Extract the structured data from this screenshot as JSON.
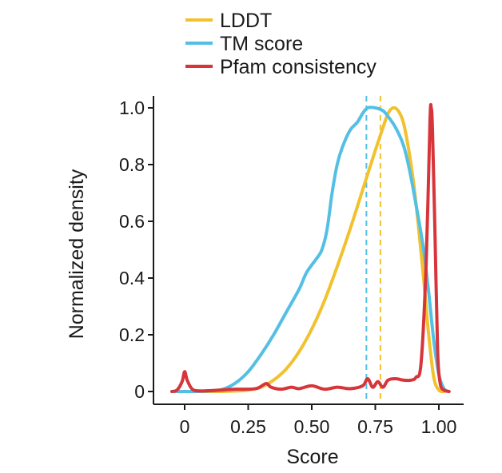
{
  "chart_data": {
    "type": "line",
    "title": "",
    "xlabel": "Score",
    "ylabel": "Normalized density",
    "xlim": [
      -0.05,
      1.05
    ],
    "ylim": [
      0,
      1.0
    ],
    "x_ticks": [
      {
        "value": 0,
        "label": "0"
      },
      {
        "value": 0.25,
        "label": "0.25"
      },
      {
        "value": 0.5,
        "label": "0.50"
      },
      {
        "value": 0.75,
        "label": "0.75"
      },
      {
        "value": 1.0,
        "label": "1.00"
      }
    ],
    "y_ticks": [
      {
        "value": 0,
        "label": "0"
      },
      {
        "value": 0.2,
        "label": "0.2"
      },
      {
        "value": 0.4,
        "label": "0.4"
      },
      {
        "value": 0.6,
        "label": "0.6"
      },
      {
        "value": 0.8,
        "label": "0.8"
      },
      {
        "value": 1.0,
        "label": "1.0"
      }
    ],
    "grid": false,
    "legend_position": "top",
    "series": [
      {
        "name": "LDDT",
        "color": "#f2c12e",
        "mean": 0.77,
        "points": [
          [
            -0.05,
            0.0
          ],
          [
            0.0,
            0.0
          ],
          [
            0.05,
            0.0
          ],
          [
            0.1,
            0.0
          ],
          [
            0.15,
            0.0
          ],
          [
            0.2,
            0.002
          ],
          [
            0.25,
            0.005
          ],
          [
            0.3,
            0.015
          ],
          [
            0.35,
            0.04
          ],
          [
            0.4,
            0.08
          ],
          [
            0.45,
            0.14
          ],
          [
            0.5,
            0.22
          ],
          [
            0.55,
            0.32
          ],
          [
            0.6,
            0.44
          ],
          [
            0.65,
            0.57
          ],
          [
            0.7,
            0.71
          ],
          [
            0.75,
            0.85
          ],
          [
            0.78,
            0.93
          ],
          [
            0.8,
            0.98
          ],
          [
            0.82,
            1.0
          ],
          [
            0.84,
            0.99
          ],
          [
            0.86,
            0.95
          ],
          [
            0.88,
            0.86
          ],
          [
            0.9,
            0.74
          ],
          [
            0.92,
            0.58
          ],
          [
            0.94,
            0.4
          ],
          [
            0.96,
            0.2
          ],
          [
            0.98,
            0.05
          ],
          [
            1.0,
            0.005
          ],
          [
            1.02,
            0.0
          ]
        ]
      },
      {
        "name": "TM score",
        "color": "#54bfe5",
        "mean": 0.715,
        "points": [
          [
            -0.05,
            0.0
          ],
          [
            0.0,
            0.0
          ],
          [
            0.05,
            0.0
          ],
          [
            0.1,
            0.002
          ],
          [
            0.15,
            0.008
          ],
          [
            0.2,
            0.03
          ],
          [
            0.25,
            0.07
          ],
          [
            0.3,
            0.13
          ],
          [
            0.35,
            0.2
          ],
          [
            0.4,
            0.28
          ],
          [
            0.45,
            0.36
          ],
          [
            0.48,
            0.42
          ],
          [
            0.52,
            0.47
          ],
          [
            0.54,
            0.5
          ],
          [
            0.56,
            0.57
          ],
          [
            0.58,
            0.7
          ],
          [
            0.6,
            0.8
          ],
          [
            0.62,
            0.86
          ],
          [
            0.65,
            0.92
          ],
          [
            0.68,
            0.95
          ],
          [
            0.7,
            0.98
          ],
          [
            0.72,
            1.0
          ],
          [
            0.75,
            1.0
          ],
          [
            0.78,
            0.99
          ],
          [
            0.8,
            0.97
          ],
          [
            0.83,
            0.93
          ],
          [
            0.86,
            0.87
          ],
          [
            0.88,
            0.8
          ],
          [
            0.9,
            0.71
          ],
          [
            0.92,
            0.61
          ],
          [
            0.94,
            0.5
          ],
          [
            0.96,
            0.35
          ],
          [
            0.98,
            0.18
          ],
          [
            1.0,
            0.06
          ],
          [
            1.02,
            0.01
          ],
          [
            1.04,
            0.0
          ]
        ]
      },
      {
        "name": "Pfam consistency",
        "color": "#d7353a",
        "mean": null,
        "points": [
          [
            -0.05,
            0.0
          ],
          [
            -0.03,
            0.005
          ],
          [
            -0.01,
            0.035
          ],
          [
            0.0,
            0.07
          ],
          [
            0.01,
            0.04
          ],
          [
            0.03,
            0.008
          ],
          [
            0.06,
            0.002
          ],
          [
            0.12,
            0.004
          ],
          [
            0.2,
            0.008
          ],
          [
            0.28,
            0.01
          ],
          [
            0.32,
            0.028
          ],
          [
            0.34,
            0.015
          ],
          [
            0.38,
            0.008
          ],
          [
            0.42,
            0.015
          ],
          [
            0.45,
            0.01
          ],
          [
            0.5,
            0.02
          ],
          [
            0.55,
            0.008
          ],
          [
            0.6,
            0.015
          ],
          [
            0.65,
            0.01
          ],
          [
            0.7,
            0.02
          ],
          [
            0.72,
            0.045
          ],
          [
            0.74,
            0.015
          ],
          [
            0.76,
            0.035
          ],
          [
            0.78,
            0.015
          ],
          [
            0.8,
            0.04
          ],
          [
            0.83,
            0.045
          ],
          [
            0.86,
            0.04
          ],
          [
            0.89,
            0.04
          ],
          [
            0.91,
            0.05
          ],
          [
            0.93,
            0.1
          ],
          [
            0.95,
            0.45
          ],
          [
            0.965,
            0.95
          ],
          [
            0.97,
            1.0
          ],
          [
            0.975,
            0.92
          ],
          [
            0.985,
            0.55
          ],
          [
            0.995,
            0.15
          ],
          [
            1.005,
            0.03
          ],
          [
            1.02,
            0.005
          ],
          [
            1.04,
            0.0
          ]
        ]
      }
    ]
  }
}
